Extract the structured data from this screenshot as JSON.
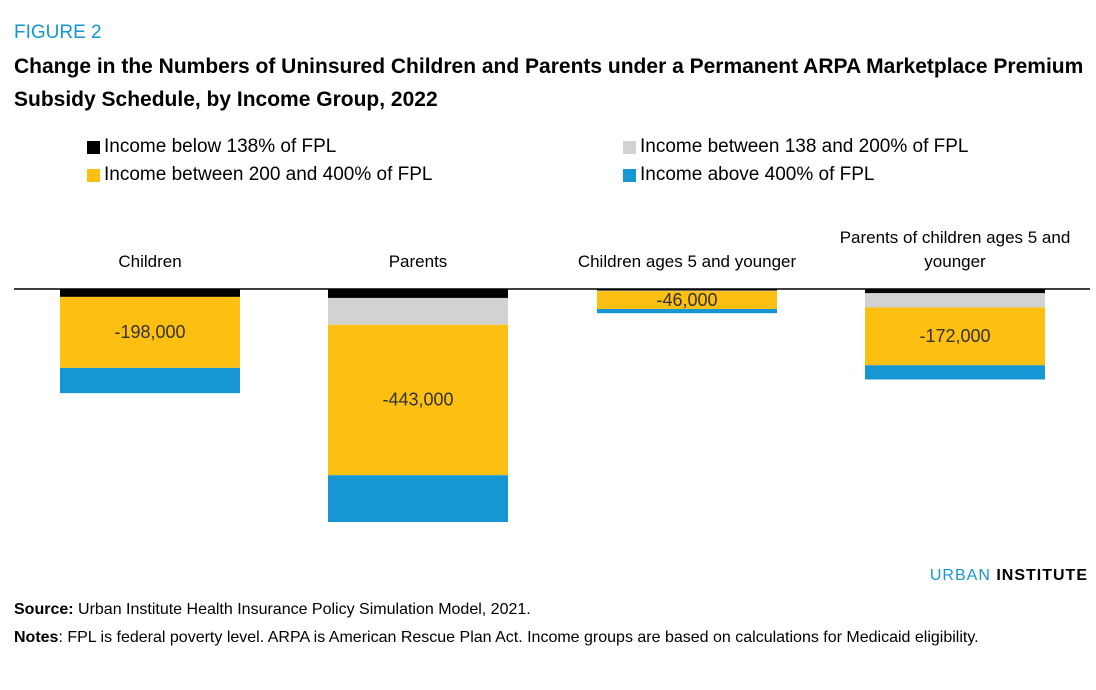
{
  "figure_label": "FIGURE 2",
  "chart_data": {
    "type": "stacked-bar",
    "title": "Change in the Numbers of Uninsured Children and Parents under a Permanent ARPA Marketplace Premium Subsidy Schedule, by Income Group, 2022",
    "categories": [
      "Children",
      "Parents",
      "Children ages 5 and younger",
      "Parents of children ages 5 and younger"
    ],
    "series": [
      {
        "name": "Income below 138% of FPL",
        "color": "#000000",
        "values": [
          -15000,
          -17000,
          -3000,
          -8000
        ]
      },
      {
        "name": "Income between 138 and 200% of FPL",
        "color": "#d2d2d2",
        "values": [
          0,
          -51000,
          -1000,
          -27000
        ]
      },
      {
        "name": "Income between 200 and 400% of FPL",
        "color": "#fdbf11",
        "values": [
          -135000,
          -286000,
          -34000,
          -110000
        ]
      },
      {
        "name": "Income above 400% of FPL",
        "color": "#1696d2",
        "values": [
          -48000,
          -89000,
          -8000,
          -27000
        ]
      }
    ],
    "totals": [
      -198000,
      -443000,
      -46000,
      -172000
    ],
    "total_labels": [
      "-198,000",
      "-443,000",
      "-46,000",
      "-172,000"
    ]
  },
  "brand": {
    "first": "URBAN",
    "second": "INSTITUTE"
  },
  "source": {
    "label": "Source:",
    "text": " Urban Institute Health Insurance Policy Simulation Model, 2021."
  },
  "notes": {
    "label": "Notes",
    "text": ": FPL is federal poverty level. ARPA is American Rescue Plan Act. Income groups are based on calculations for Medicaid eligibility."
  }
}
